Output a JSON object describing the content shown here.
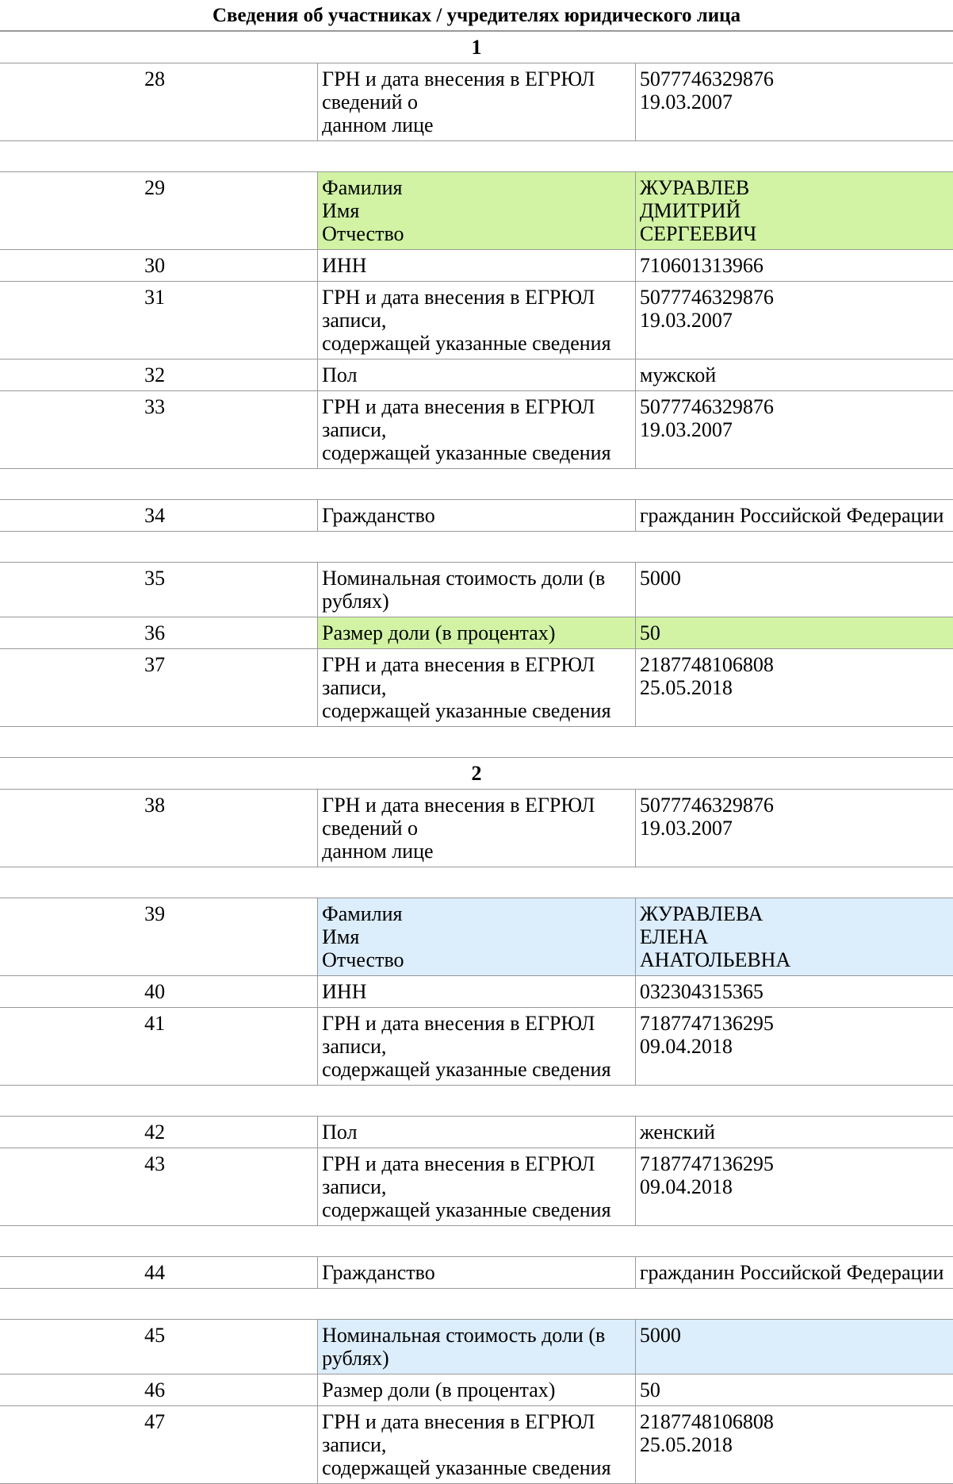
{
  "header": {
    "title": "Сведения об участниках / учредителях юридического лица"
  },
  "sections": [
    {
      "number": "1",
      "rows": [
        {
          "n": "28",
          "label": [
            "ГРН и дата внесения в ЕГРЮЛ сведений о",
            "данном лице"
          ],
          "value": [
            "5077746329876",
            "19.03.2007"
          ]
        },
        {
          "n": "29",
          "label": [
            "Фамилия",
            "Имя",
            "Отчество"
          ],
          "value": [
            "ЖУРАВЛЕВ",
            "ДМИТРИЙ",
            "СЕРГЕЕВИЧ"
          ]
        },
        {
          "n": "30",
          "label": [
            "ИНН"
          ],
          "value": [
            "710601313966"
          ]
        },
        {
          "n": "31",
          "label": [
            "ГРН и дата внесения в ЕГРЮЛ записи,",
            "содержащей указанные сведения"
          ],
          "value": [
            "5077746329876",
            "19.03.2007"
          ]
        },
        {
          "n": "32",
          "label": [
            "Пол"
          ],
          "value": [
            "мужской"
          ]
        },
        {
          "n": "33",
          "label": [
            "ГРН и дата внесения в ЕГРЮЛ записи,",
            "содержащей указанные сведения"
          ],
          "value": [
            "5077746329876",
            "19.03.2007"
          ]
        },
        {
          "n": "34",
          "label": [
            "Гражданство"
          ],
          "value": [
            "гражданин Российской Федерации"
          ]
        },
        {
          "n": "35",
          "label": [
            "Номинальная стоимость доли (в рублях)"
          ],
          "value": [
            "5000"
          ]
        },
        {
          "n": "36",
          "label": [
            "Размер доли (в процентах)"
          ],
          "value": [
            "50"
          ]
        },
        {
          "n": "37",
          "label": [
            "ГРН и дата внесения в ЕГРЮЛ записи,",
            "содержащей указанные сведения"
          ],
          "value": [
            "2187748106808",
            "25.05.2018"
          ]
        }
      ]
    },
    {
      "number": "2",
      "rows": [
        {
          "n": "38",
          "label": [
            "ГРН и дата внесения в ЕГРЮЛ сведений о",
            "данном лице"
          ],
          "value": [
            "5077746329876",
            "19.03.2007"
          ]
        },
        {
          "n": "39",
          "label": [
            "Фамилия",
            "Имя",
            "Отчество"
          ],
          "value": [
            "ЖУРАВЛЕВА",
            "ЕЛЕНА",
            "АНАТОЛЬЕВНА"
          ]
        },
        {
          "n": "40",
          "label": [
            "ИНН"
          ],
          "value": [
            "032304315365"
          ]
        },
        {
          "n": "41",
          "label": [
            "ГРН и дата внесения в ЕГРЮЛ записи,",
            "содержащей указанные сведения"
          ],
          "value": [
            "7187747136295",
            "09.04.2018"
          ]
        },
        {
          "n": "42",
          "label": [
            "Пол"
          ],
          "value": [
            "женский"
          ]
        },
        {
          "n": "43",
          "label": [
            "ГРН и дата внесения в ЕГРЮЛ записи,",
            "содержащей указанные сведения"
          ],
          "value": [
            "7187747136295",
            "09.04.2018"
          ]
        },
        {
          "n": "44",
          "label": [
            "Гражданство"
          ],
          "value": [
            "гражданин Российской Федерации"
          ]
        },
        {
          "n": "45",
          "label": [
            "Номинальная стоимость доли (в рублях)"
          ],
          "value": [
            "5000"
          ]
        },
        {
          "n": "46",
          "label": [
            "Размер доли (в процентах)"
          ],
          "value": [
            "50"
          ]
        },
        {
          "n": "47",
          "label": [
            "ГРН и дата внесения в ЕГРЮЛ записи,",
            "содержащей указанные сведения"
          ],
          "value": [
            "2187748106808",
            "25.05.2018"
          ]
        }
      ]
    }
  ]
}
